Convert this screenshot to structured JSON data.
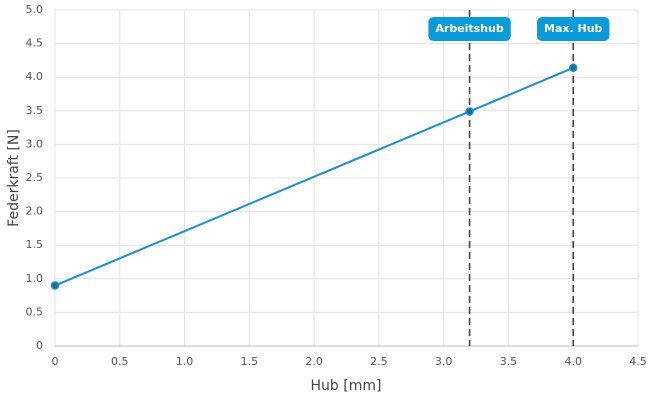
{
  "chart_data": {
    "type": "line",
    "x_label": "Hub [mm]",
    "y_label": "Federkraft [N]",
    "x": [
      0,
      3.2,
      4.0
    ],
    "series": [
      {
        "color": "#1a8fd0",
        "values": [
          0.9,
          3.49,
          4.14
        ]
      }
    ],
    "xlim": [
      0,
      4.5
    ],
    "xticks": [
      0,
      0.5,
      {
        "value": 1,
        "label": "1.0"
      },
      1.5,
      {
        "value": 2,
        "label": "2.0"
      },
      2.5,
      {
        "value": 3,
        "label": "3.0"
      },
      3.5,
      {
        "value": 4,
        "label": "4.0"
      },
      4.5
    ],
    "ylim": [
      0,
      5
    ],
    "yticks": [
      0,
      0.5,
      {
        "value": 1,
        "label": "1.0"
      },
      1.5,
      {
        "value": 2,
        "label": "2.0"
      },
      2.5,
      {
        "value": 3,
        "label": "3.0"
      },
      3.5,
      {
        "value": 4,
        "label": "4.0"
      },
      4.5,
      {
        "value": 5,
        "label": "5.0"
      }
    ],
    "grid": true,
    "annotations": [
      {
        "x": 3.2,
        "label": "Arbeitshub"
      },
      {
        "x": 4.0,
        "label": "Max. Hub"
      }
    ]
  }
}
